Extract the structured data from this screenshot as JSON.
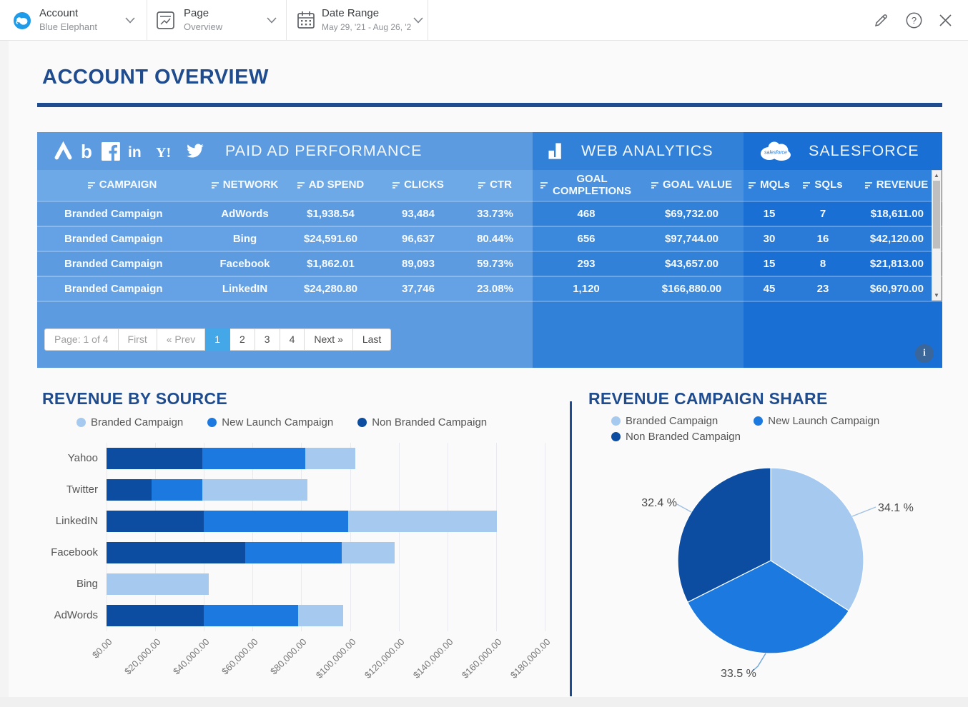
{
  "topbar": {
    "account": {
      "label": "Account",
      "value": "Blue Elephant"
    },
    "page": {
      "label": "Page",
      "value": "Overview"
    },
    "date_range": {
      "label": "Date Range",
      "value": "May 29, '21 - Aug 26, '2"
    }
  },
  "page_title": "ACCOUNT OVERVIEW",
  "table": {
    "sections": [
      {
        "id": "paid",
        "title": "PAID AD PERFORMANCE"
      },
      {
        "id": "web",
        "title": "WEB ANALYTICS"
      },
      {
        "id": "sf",
        "title": "SALESFORCE"
      }
    ],
    "columns": {
      "paid": [
        "CAMPAIGN",
        "NETWORK",
        "AD SPEND",
        "CLICKS",
        "CTR"
      ],
      "web": [
        "GOAL COMPLETIONS",
        "GOAL VALUE"
      ],
      "sf": [
        "MQLs",
        "SQLs",
        "REVENUE"
      ]
    },
    "rows": [
      {
        "campaign": "Branded Campaign",
        "network": "AdWords",
        "ad_spend": "$1,938.54",
        "clicks": "93,484",
        "ctr": "33.73%",
        "goal_completions": "468",
        "goal_value": "$69,732.00",
        "mqls": "15",
        "sqls": "7",
        "revenue": "$18,611.00"
      },
      {
        "campaign": "Branded Campaign",
        "network": "Bing",
        "ad_spend": "$24,591.60",
        "clicks": "96,637",
        "ctr": "80.44%",
        "goal_completions": "656",
        "goal_value": "$97,744.00",
        "mqls": "30",
        "sqls": "16",
        "revenue": "$42,120.00"
      },
      {
        "campaign": "Branded Campaign",
        "network": "Facebook",
        "ad_spend": "$1,862.01",
        "clicks": "89,093",
        "ctr": "59.73%",
        "goal_completions": "293",
        "goal_value": "$43,657.00",
        "mqls": "15",
        "sqls": "8",
        "revenue": "$21,813.00"
      },
      {
        "campaign": "Branded Campaign",
        "network": "LinkedIN",
        "ad_spend": "$24,280.80",
        "clicks": "37,746",
        "ctr": "23.08%",
        "goal_completions": "1,120",
        "goal_value": "$166,880.00",
        "mqls": "45",
        "sqls": "23",
        "revenue": "$60,970.00"
      }
    ],
    "pagination": {
      "label": "Page: 1 of 4",
      "buttons": [
        "First",
        "« Prev",
        "1",
        "2",
        "3",
        "4",
        "Next »",
        "Last"
      ],
      "active": "1",
      "muted": [
        "First",
        "« Prev"
      ]
    }
  },
  "left_chart_title": "REVENUE BY SOURCE",
  "right_chart_title": "REVENUE CAMPAIGN SHARE",
  "series_colors": {
    "Branded Campaign": "#a6c9f0",
    "New Launch Campaign": "#1b79e0",
    "Non Branded Campaign": "#0c4da1"
  },
  "legend_order": [
    "Branded Campaign",
    "New Launch Campaign",
    "Non Branded Campaign"
  ],
  "chart_data": [
    {
      "type": "bar",
      "title": "REVENUE BY SOURCE",
      "orientation": "horizontal",
      "categories": [
        "Yahoo",
        "Twitter",
        "LinkedIN",
        "Facebook",
        "Bing",
        "AdWords"
      ],
      "series": [
        {
          "name": "Non Branded Campaign",
          "color": "#0c4da1",
          "values": [
            39400,
            18500,
            39900,
            57000,
            0,
            39900
          ]
        },
        {
          "name": "New Launch Campaign",
          "color": "#1b79e0",
          "values": [
            42200,
            20900,
            59400,
            39600,
            0,
            38800
          ]
        },
        {
          "name": "Branded Campaign",
          "color": "#a6c9f0",
          "values": [
            20600,
            43100,
            60970,
            21813,
            42120,
            18611
          ]
        }
      ],
      "xlabel": "",
      "ylabel": "",
      "xlim": [
        0,
        180000
      ],
      "xtick_labels": [
        "$0.00",
        "$20,000.00",
        "$40,000.00",
        "$60,000.00",
        "$80,000.00",
        "$100,000.00",
        "$120,000.00",
        "$140,000.00",
        "$160,000.00",
        "$180,000.00"
      ],
      "grid": true,
      "legend_position": "top"
    },
    {
      "type": "pie",
      "title": "REVENUE CAMPAIGN SHARE",
      "slices": [
        {
          "name": "Branded Campaign",
          "value": 34.1,
          "label": "34.1 %",
          "color": "#a6c9f0"
        },
        {
          "name": "New Launch Campaign",
          "value": 33.5,
          "label": "33.5 %",
          "color": "#1b79e0"
        },
        {
          "name": "Non Branded Campaign",
          "value": 32.4,
          "label": "32.4 %",
          "color": "#0c4da1"
        }
      ],
      "start_angle": 0,
      "legend_position": "top"
    }
  ]
}
